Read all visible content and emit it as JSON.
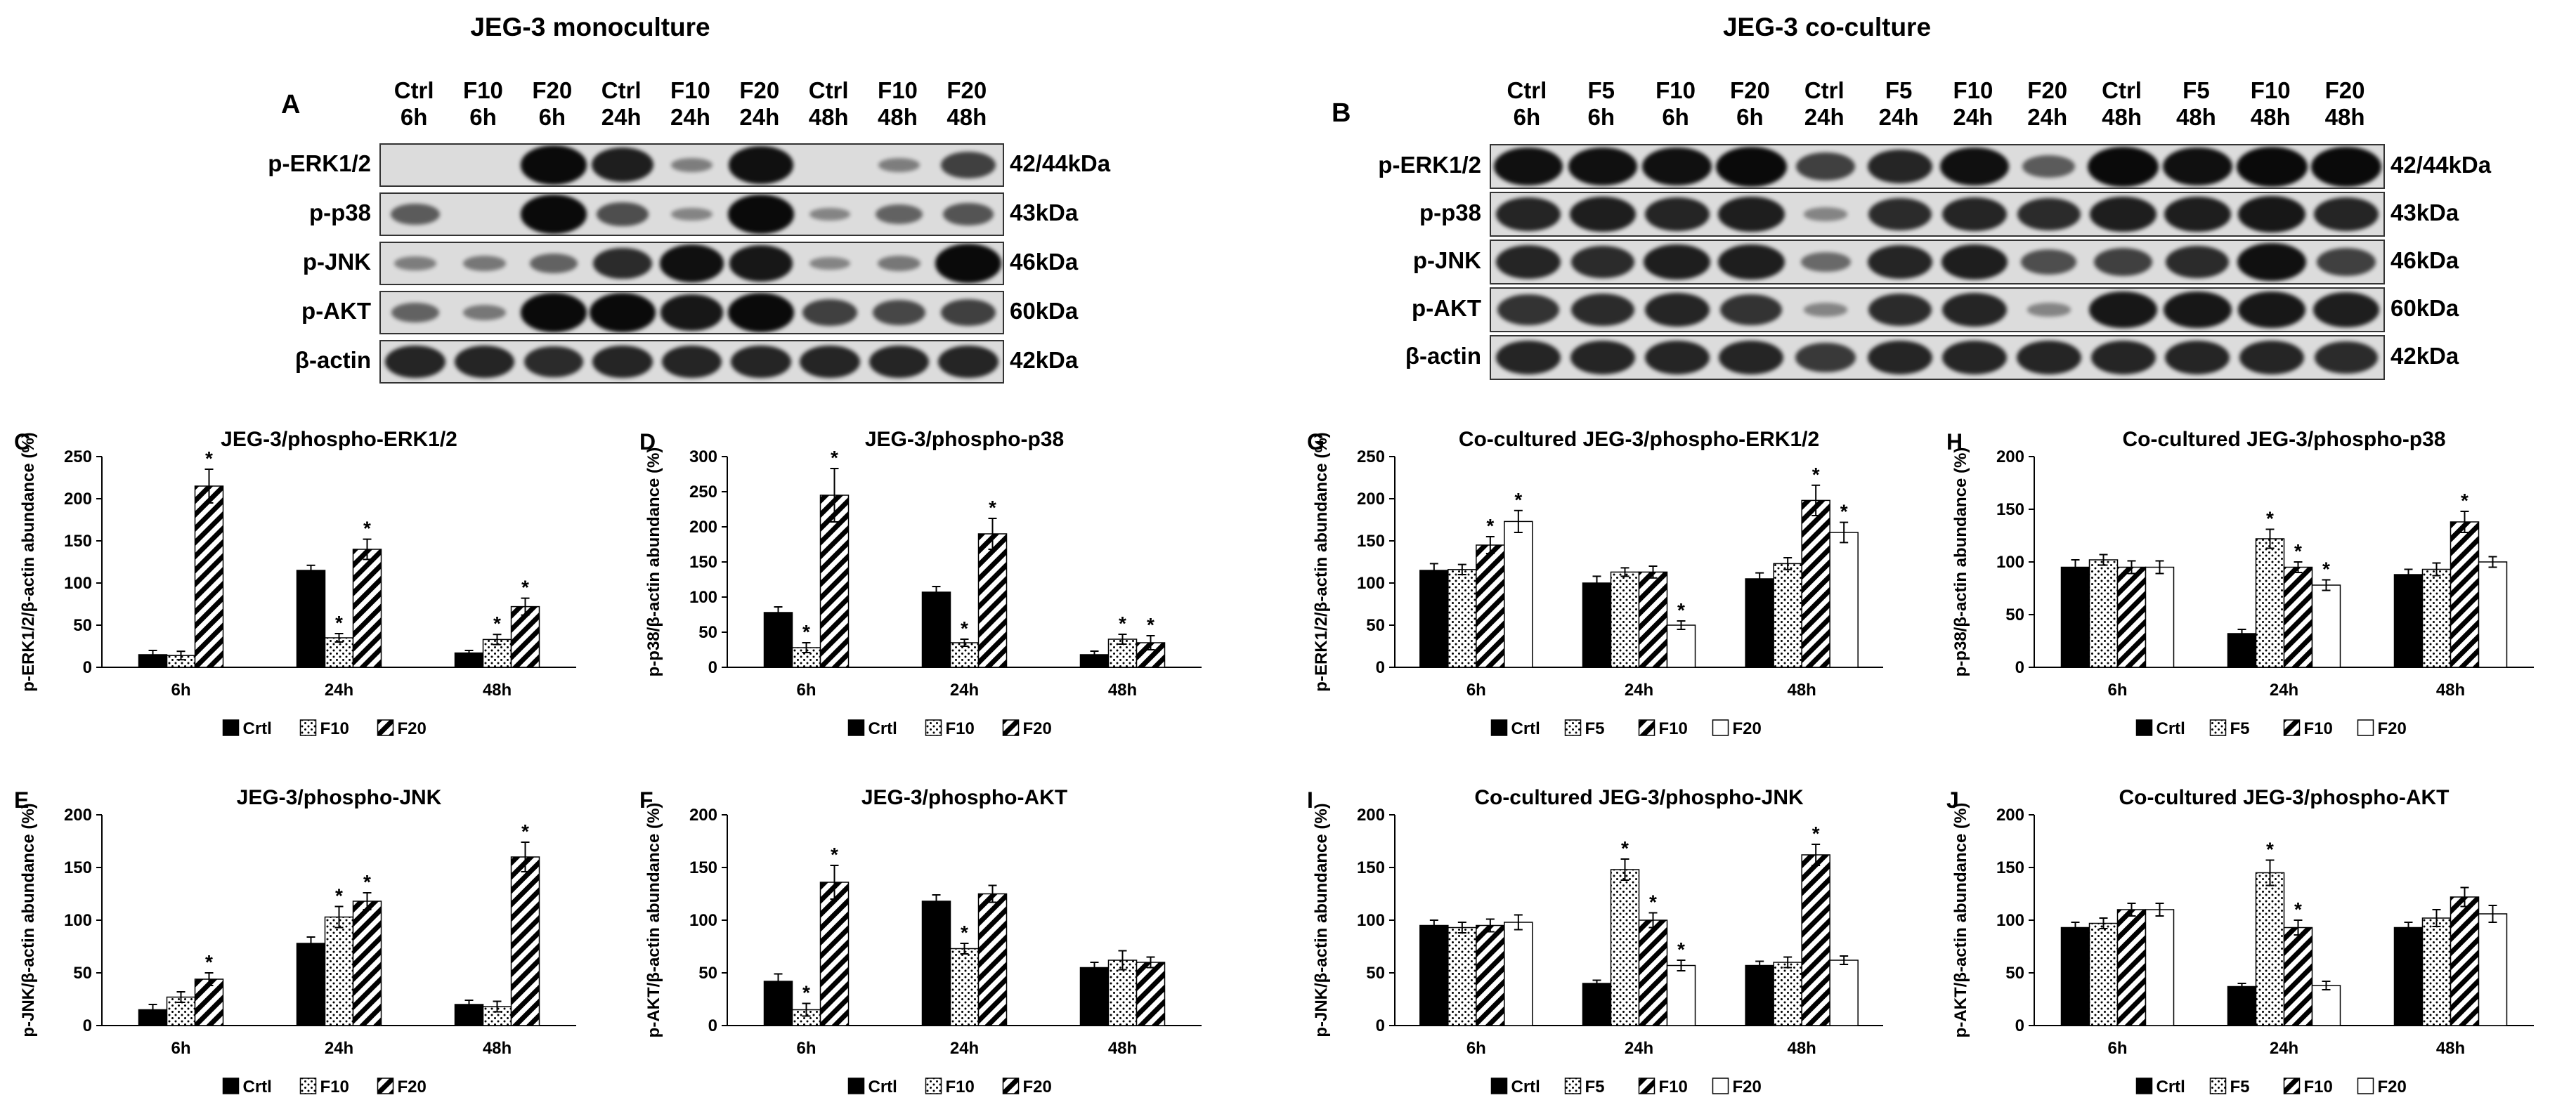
{
  "titles": {
    "left": "JEG-3 monoculture",
    "right": "JEG-3 co-culture"
  },
  "blots": {
    "A": {
      "letter": "A",
      "lanes": [
        [
          "Ctrl",
          "6h"
        ],
        [
          "F10",
          "6h"
        ],
        [
          "F20",
          "6h"
        ],
        [
          "Ctrl",
          "24h"
        ],
        [
          "F10",
          "24h"
        ],
        [
          "F20",
          "24h"
        ],
        [
          "Ctrl",
          "48h"
        ],
        [
          "F10",
          "48h"
        ],
        [
          "F20",
          "48h"
        ]
      ],
      "rows": [
        {
          "label": "p-ERK1/2",
          "kda": "42/44kDa",
          "intensity": [
            0.0,
            0.0,
            1.0,
            0.85,
            0.15,
            0.95,
            0.0,
            0.15,
            0.6
          ]
        },
        {
          "label": "p-p38",
          "kda": "43kDa",
          "intensity": [
            0.4,
            0.0,
            1.0,
            0.5,
            0.1,
            1.0,
            0.1,
            0.35,
            0.45
          ]
        },
        {
          "label": "p-JNK",
          "kda": "46kDa",
          "intensity": [
            0.15,
            0.2,
            0.35,
            0.75,
            0.95,
            0.9,
            0.1,
            0.2,
            1.0
          ]
        },
        {
          "label": "p-AKT",
          "kda": "60kDa",
          "intensity": [
            0.35,
            0.2,
            1.0,
            1.0,
            0.9,
            1.0,
            0.6,
            0.55,
            0.6
          ]
        },
        {
          "label": "β-actin",
          "kda": "42kDa",
          "intensity": [
            0.8,
            0.8,
            0.75,
            0.8,
            0.8,
            0.8,
            0.8,
            0.8,
            0.8
          ]
        }
      ]
    },
    "B": {
      "letter": "B",
      "lanes": [
        [
          "Ctrl",
          "6h"
        ],
        [
          "F5",
          "6h"
        ],
        [
          "F10",
          "6h"
        ],
        [
          "F20",
          "6h"
        ],
        [
          "Ctrl",
          "24h"
        ],
        [
          "F5",
          "24h"
        ],
        [
          "F10",
          "24h"
        ],
        [
          "F20",
          "24h"
        ],
        [
          "Ctrl",
          "48h"
        ],
        [
          "F5",
          "48h"
        ],
        [
          "F10",
          "48h"
        ],
        [
          "F20",
          "48h"
        ]
      ],
      "rows": [
        {
          "label": "p-ERK1/2",
          "kda": "42/44kDa",
          "intensity": [
            0.95,
            0.95,
            0.95,
            1.0,
            0.6,
            0.8,
            0.95,
            0.4,
            1.0,
            0.95,
            1.0,
            1.0
          ]
        },
        {
          "label": "p-p38",
          "kda": "43kDa",
          "intensity": [
            0.8,
            0.85,
            0.8,
            0.85,
            0.1,
            0.75,
            0.8,
            0.75,
            0.85,
            0.85,
            0.9,
            0.8
          ]
        },
        {
          "label": "p-JNK",
          "kda": "46kDa",
          "intensity": [
            0.8,
            0.75,
            0.85,
            0.85,
            0.3,
            0.8,
            0.85,
            0.5,
            0.6,
            0.75,
            0.95,
            0.6
          ]
        },
        {
          "label": "p-AKT",
          "kda": "60kDa",
          "intensity": [
            0.7,
            0.75,
            0.8,
            0.7,
            0.1,
            0.75,
            0.8,
            0.1,
            0.9,
            0.9,
            0.9,
            0.85
          ]
        },
        {
          "label": "β-actin",
          "kda": "42kDa",
          "intensity": [
            0.8,
            0.8,
            0.8,
            0.8,
            0.65,
            0.8,
            0.8,
            0.8,
            0.8,
            0.8,
            0.8,
            0.75
          ]
        }
      ]
    }
  },
  "chart_data": [
    {
      "id": "C",
      "letter": "C",
      "type": "bar",
      "title": "JEG-3/phospho-ERK1/2",
      "ylabel": "p-ERK1/2/β-actin abundance (%)",
      "ylim": [
        0,
        250
      ],
      "yticks": [
        0,
        50,
        100,
        150,
        200,
        250
      ],
      "categories": [
        "6h",
        "24h",
        "48h"
      ],
      "series": [
        {
          "name": "Crtl",
          "values": [
            15,
            115,
            17
          ],
          "err": [
            5,
            6,
            3
          ],
          "sig": [
            false,
            false,
            false
          ]
        },
        {
          "name": "F10",
          "values": [
            14,
            35,
            33
          ],
          "err": [
            5,
            5,
            6
          ],
          "sig": [
            false,
            true,
            true
          ]
        },
        {
          "name": "F20",
          "values": [
            215,
            140,
            72
          ],
          "err": [
            20,
            12,
            10
          ],
          "sig": [
            true,
            true,
            true
          ]
        }
      ]
    },
    {
      "id": "D",
      "letter": "D",
      "type": "bar",
      "title": "JEG-3/phospho-p38",
      "ylabel": "p-p38/β-actin abundance (%)",
      "ylim": [
        0,
        300
      ],
      "yticks": [
        0,
        50,
        100,
        150,
        200,
        250,
        300
      ],
      "categories": [
        "6h",
        "24h",
        "48h"
      ],
      "series": [
        {
          "name": "Crtl",
          "values": [
            78,
            107,
            18
          ],
          "err": [
            8,
            8,
            5
          ],
          "sig": [
            false,
            false,
            false
          ]
        },
        {
          "name": "F10",
          "values": [
            28,
            35,
            40
          ],
          "err": [
            7,
            5,
            7
          ],
          "sig": [
            true,
            true,
            true
          ]
        },
        {
          "name": "F20",
          "values": [
            245,
            190,
            35
          ],
          "err": [
            38,
            22,
            10
          ],
          "sig": [
            true,
            true,
            true
          ]
        }
      ]
    },
    {
      "id": "E",
      "letter": "E",
      "type": "bar",
      "title": "JEG-3/phospho-JNK",
      "ylabel": "p-JNK/β-actin abundance (%)",
      "ylim": [
        0,
        200
      ],
      "yticks": [
        0,
        50,
        100,
        150,
        200
      ],
      "categories": [
        "6h",
        "24h",
        "48h"
      ],
      "series": [
        {
          "name": "Crtl",
          "values": [
            15,
            78,
            20
          ],
          "err": [
            5,
            6,
            4
          ],
          "sig": [
            false,
            false,
            false
          ]
        },
        {
          "name": "F10",
          "values": [
            27,
            103,
            18
          ],
          "err": [
            5,
            10,
            5
          ],
          "sig": [
            false,
            true,
            false
          ]
        },
        {
          "name": "F20",
          "values": [
            44,
            118,
            160
          ],
          "err": [
            6,
            8,
            14
          ],
          "sig": [
            true,
            true,
            true
          ]
        }
      ]
    },
    {
      "id": "F",
      "letter": "F",
      "type": "bar",
      "title": "JEG-3/phospho-AKT",
      "ylabel": "p-AKT/β-actin abundance (%)",
      "ylim": [
        0,
        200
      ],
      "yticks": [
        0,
        50,
        100,
        150,
        200
      ],
      "categories": [
        "6h",
        "24h",
        "48h"
      ],
      "series": [
        {
          "name": "Crtl",
          "values": [
            42,
            118,
            55
          ],
          "err": [
            7,
            6,
            5
          ],
          "sig": [
            false,
            false,
            false
          ]
        },
        {
          "name": "F10",
          "values": [
            15,
            73,
            62
          ],
          "err": [
            6,
            5,
            9
          ],
          "sig": [
            true,
            true,
            false
          ]
        },
        {
          "name": "F20",
          "values": [
            136,
            125,
            60
          ],
          "err": [
            16,
            8,
            5
          ],
          "sig": [
            true,
            false,
            false
          ]
        }
      ]
    },
    {
      "id": "G",
      "letter": "G",
      "type": "bar",
      "title": "Co-cultured JEG-3/phospho-ERK1/2",
      "ylabel": "p-ERK1/2/β-actin abundance (%)",
      "ylim": [
        0,
        250
      ],
      "yticks": [
        0,
        50,
        100,
        150,
        200,
        250
      ],
      "categories": [
        "6h",
        "24h",
        "48h"
      ],
      "series": [
        {
          "name": "Crtl",
          "values": [
            115,
            100,
            105
          ],
          "err": [
            8,
            8,
            7
          ],
          "sig": [
            false,
            false,
            false
          ]
        },
        {
          "name": "F5",
          "values": [
            116,
            113,
            123
          ],
          "err": [
            6,
            5,
            7
          ],
          "sig": [
            false,
            false,
            false
          ]
        },
        {
          "name": "F10",
          "values": [
            145,
            113,
            198
          ],
          "err": [
            10,
            7,
            18
          ],
          "sig": [
            true,
            false,
            true
          ]
        },
        {
          "name": "F20",
          "values": [
            173,
            50,
            160
          ],
          "err": [
            13,
            5,
            12
          ],
          "sig": [
            true,
            true,
            true
          ]
        }
      ]
    },
    {
      "id": "H",
      "letter": "H",
      "type": "bar",
      "title": "Co-cultured JEG-3/phospho-p38",
      "ylabel": "p-p38/β-actin abundance (%)",
      "ylim": [
        0,
        200
      ],
      "yticks": [
        0,
        50,
        100,
        150,
        200
      ],
      "categories": [
        "6h",
        "24h",
        "48h"
      ],
      "series": [
        {
          "name": "Crtl",
          "values": [
            95,
            32,
            88
          ],
          "err": [
            7,
            4,
            5
          ],
          "sig": [
            false,
            false,
            false
          ]
        },
        {
          "name": "F5",
          "values": [
            102,
            122,
            93
          ],
          "err": [
            5,
            9,
            6
          ],
          "sig": [
            false,
            true,
            false
          ]
        },
        {
          "name": "F10",
          "values": [
            95,
            95,
            138
          ],
          "err": [
            6,
            5,
            10
          ],
          "sig": [
            false,
            true,
            true
          ]
        },
        {
          "name": "F20",
          "values": [
            95,
            78,
            100
          ],
          "err": [
            6,
            5,
            5
          ],
          "sig": [
            false,
            true,
            false
          ]
        }
      ]
    },
    {
      "id": "I",
      "letter": "I",
      "type": "bar",
      "title": "Co-cultured JEG-3/phospho-JNK",
      "ylabel": "p-JNK/β-actin abundance (%)",
      "ylim": [
        0,
        200
      ],
      "yticks": [
        0,
        50,
        100,
        150,
        200
      ],
      "categories": [
        "6h",
        "24h",
        "48h"
      ],
      "series": [
        {
          "name": "Crtl",
          "values": [
            95,
            40,
            57
          ],
          "err": [
            5,
            3,
            4
          ],
          "sig": [
            false,
            false,
            false
          ]
        },
        {
          "name": "F5",
          "values": [
            93,
            148,
            60
          ],
          "err": [
            5,
            10,
            5
          ],
          "sig": [
            false,
            true,
            false
          ]
        },
        {
          "name": "F10",
          "values": [
            95,
            100,
            162
          ],
          "err": [
            6,
            7,
            10
          ],
          "sig": [
            false,
            true,
            true
          ]
        },
        {
          "name": "F20",
          "values": [
            98,
            57,
            62
          ],
          "err": [
            7,
            5,
            4
          ],
          "sig": [
            false,
            true,
            false
          ]
        }
      ]
    },
    {
      "id": "J",
      "letter": "J",
      "type": "bar",
      "title": "Co-cultured JEG-3/phospho-AKT",
      "ylabel": "p-AKT/β-actin abundance (%)",
      "ylim": [
        0,
        200
      ],
      "yticks": [
        0,
        50,
        100,
        150,
        200
      ],
      "categories": [
        "6h",
        "24h",
        "48h"
      ],
      "series": [
        {
          "name": "Crtl",
          "values": [
            93,
            37,
            93
          ],
          "err": [
            5,
            3,
            5
          ],
          "sig": [
            false,
            false,
            false
          ]
        },
        {
          "name": "F5",
          "values": [
            97,
            145,
            102
          ],
          "err": [
            5,
            12,
            8
          ],
          "sig": [
            false,
            true,
            false
          ]
        },
        {
          "name": "F10",
          "values": [
            110,
            93,
            122
          ],
          "err": [
            6,
            7,
            9
          ],
          "sig": [
            false,
            true,
            false
          ]
        },
        {
          "name": "F20",
          "values": [
            110,
            38,
            106
          ],
          "err": [
            6,
            4,
            8
          ],
          "sig": [
            false,
            false,
            false
          ]
        }
      ]
    }
  ]
}
